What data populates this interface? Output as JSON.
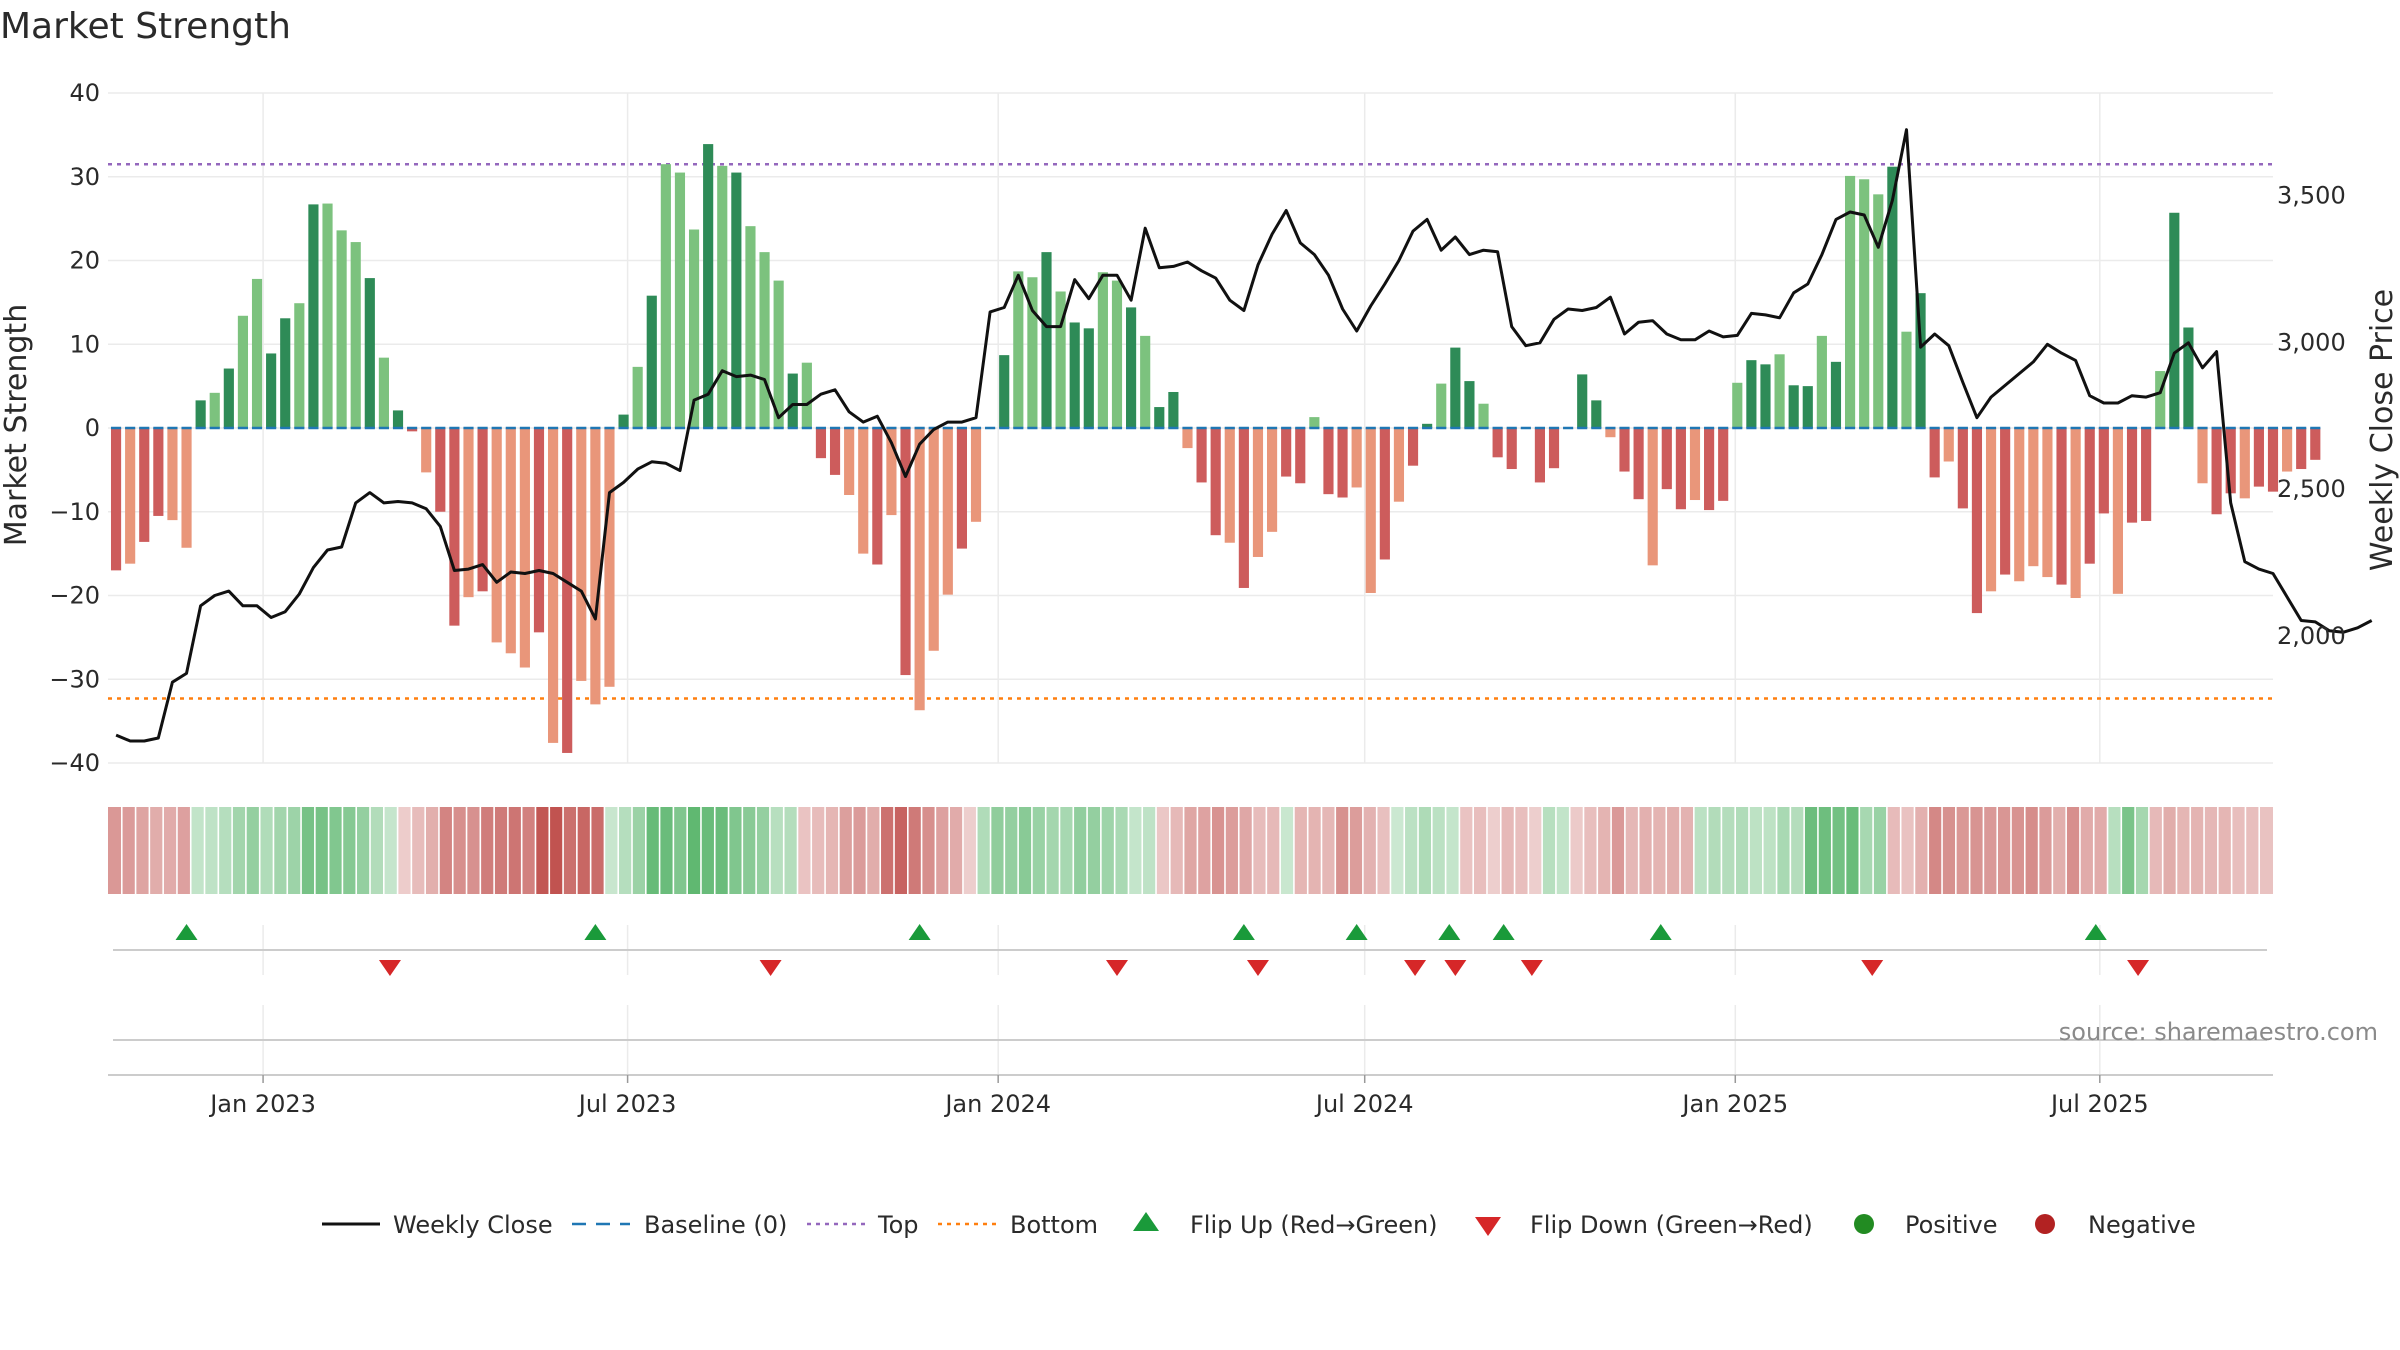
{
  "chart_data": {
    "type": "bar",
    "title": "Market Strength",
    "ylabel_left": "Market Strength",
    "ylabel_right": "Weekly Close Price",
    "ylim_left": [
      -40,
      40
    ],
    "yticks_left": [
      40,
      30,
      20,
      10,
      0,
      -10,
      -20,
      -30,
      -40
    ],
    "ytick_labels_left": [
      "40",
      "30",
      "20",
      "10",
      "0",
      "−10",
      "−20",
      "−30",
      "−40"
    ],
    "ylim_right": [
      1565,
      3845
    ],
    "yticks_right": [
      3500,
      3000,
      2500,
      2000
    ],
    "ytick_labels_right": [
      "3,500",
      "3,000",
      "2,500",
      "2,000"
    ],
    "x_range": [
      "2022-10-16",
      "2025-09-25"
    ],
    "x_tick_dates": [
      "2023-01-01",
      "2023-07-01",
      "2024-01-01",
      "2024-07-01",
      "2025-01-01",
      "2025-07-01"
    ],
    "x_tick_labels": [
      "Jan 2023",
      "Jul 2023",
      "Jan 2024",
      "Jul 2024",
      "Jan 2025",
      "Jul 2025"
    ],
    "start_date": "2022-10-20",
    "week_days": 7,
    "top_level": 31.5,
    "bottom_level": -32.3,
    "baseline": 0,
    "strength": [
      -17,
      -16.2,
      -13.6,
      -10.5,
      -11,
      -14.3,
      3.3,
      4.2,
      7.1,
      13.4,
      17.8,
      8.9,
      13.1,
      14.9,
      26.7,
      26.8,
      23.6,
      22.2,
      17.9,
      8.4,
      2.1,
      -0.4,
      -5.3,
      -10,
      -23.6,
      -20.2,
      -19.5,
      -25.6,
      -26.9,
      -28.6,
      -24.4,
      -37.6,
      -38.8,
      -30.2,
      -33,
      -30.9,
      1.6,
      7.3,
      15.8,
      31.5,
      30.5,
      23.7,
      33.9,
      31.3,
      30.5,
      24.1,
      21,
      17.6,
      6.5,
      7.8,
      -3.6,
      -5.6,
      -8,
      -15,
      -16.3,
      -10.4,
      -29.5,
      -33.7,
      -26.6,
      -19.9,
      -14.4,
      -11.2,
      -0.1,
      8.7,
      18.7,
      18,
      21,
      16.3,
      12.6,
      11.9,
      18.6,
      17.6,
      14.4,
      11,
      2.5,
      4.3,
      -2.4,
      -6.5,
      -12.8,
      -13.7,
      -19.1,
      -15.4,
      -12.4,
      -5.8,
      -6.6,
      1.3,
      -7.9,
      -8.3,
      -7.1,
      -19.7,
      -15.7,
      -8.8,
      -4.5,
      0.5,
      5.3,
      9.6,
      5.6,
      2.9,
      -3.5,
      -4.9,
      -0.1,
      -6.5,
      -4.8,
      -0.1,
      6.4,
      3.3,
      -1.1,
      -5.2,
      -8.5,
      -16.4,
      -7.3,
      -9.7,
      -8.6,
      -9.8,
      -8.7,
      5.4,
      8.1,
      7.6,
      8.8,
      5.1,
      5,
      11,
      7.9,
      30.1,
      29.7,
      27.9,
      31.2,
      11.5,
      16.1,
      -5.9,
      -4,
      -9.6,
      -22.1,
      -19.5,
      -17.5,
      -18.3,
      -16.5,
      -17.8,
      -18.7,
      -20.3,
      -16.2,
      -10.2,
      -19.8,
      -11.3,
      -11.1,
      6.8,
      25.7,
      12,
      -6.6,
      -10.3,
      -7.8,
      -8.4,
      -7,
      -7.6,
      -5.2,
      -4.9,
      -3.8
    ],
    "close": [
      1660,
      1640,
      1640,
      1650,
      1840,
      1870,
      2100,
      2135,
      2150,
      2100,
      2100,
      2060,
      2080,
      2140,
      2230,
      2290,
      2300,
      2450,
      2485,
      2450,
      2455,
      2450,
      2430,
      2370,
      2220,
      2225,
      2240,
      2180,
      2215,
      2210,
      2220,
      2210,
      2180,
      2150,
      2055,
      2485,
      2520,
      2565,
      2590,
      2585,
      2560,
      2800,
      2820,
      2900,
      2880,
      2885,
      2870,
      2740,
      2785,
      2785,
      2820,
      2835,
      2760,
      2725,
      2745,
      2655,
      2540,
      2650,
      2700,
      2725,
      2725,
      2740,
      3100,
      3115,
      3225,
      3105,
      3050,
      3050,
      3210,
      3145,
      3225,
      3225,
      3140,
      3385,
      3250,
      3255,
      3270,
      3240,
      3215,
      3140,
      3105,
      3260,
      3365,
      3445,
      3335,
      3295,
      3225,
      3110,
      3035,
      3120,
      3195,
      3275,
      3375,
      3415,
      3310,
      3355,
      3295,
      3310,
      3305,
      3050,
      2985,
      2995,
      3075,
      3110,
      3105,
      3115,
      3150,
      3025,
      3065,
      3070,
      3025,
      3005,
      3005,
      3035,
      3015,
      3020,
      3095,
      3090,
      3080,
      3165,
      3195,
      3295,
      3415,
      3440,
      3430,
      3320,
      3480,
      3720,
      2980,
      3025,
      2985,
      2860,
      2740,
      2810,
      2850,
      2890,
      2930,
      2990,
      2960,
      2935,
      2815,
      2790,
      2790,
      2815,
      2810,
      2825,
      2960,
      2995,
      2910,
      2965,
      2450,
      2250,
      2225,
      2210,
      2130,
      2050,
      2045,
      2015,
      2010,
      2025,
      2050
    ],
    "flip_up_dates": [
      "2022-11-24",
      "2023-06-15",
      "2023-11-23",
      "2024-05-02",
      "2024-06-27",
      "2024-08-12",
      "2024-09-08",
      "2024-11-25",
      "2025-06-29"
    ],
    "flip_down_dates": [
      "2023-03-05",
      "2023-09-10",
      "2024-02-29",
      "2024-05-09",
      "2024-07-26",
      "2024-08-15",
      "2024-09-22",
      "2025-03-10",
      "2025-07-20"
    ],
    "legend": [
      "Weekly Close",
      "Baseline (0)",
      "Top",
      "Bottom",
      "Flip Up (Red→Green)",
      "Flip Down (Green→Red)",
      "Positive",
      "Negative"
    ],
    "legend_position": "bottom-center",
    "source_text": "source: sharemaestro.com"
  },
  "colors": {
    "pos_strong": "#2e8b57",
    "pos_light": "#7cc27e",
    "neg_strong": "#cd5c5c",
    "neg_light": "#e9967a",
    "close_line": "#111111",
    "baseline": "#1f77b4",
    "top": "#9467bd",
    "bottom": "#ff7f0e",
    "flip_up": "#1a9a3a",
    "flip_down": "#d62728",
    "legend_positive": "#228b22",
    "legend_negative": "#b22222",
    "heat_green": "#4caf60",
    "heat_red": "#c0504d",
    "grid": "#ebebeb"
  }
}
